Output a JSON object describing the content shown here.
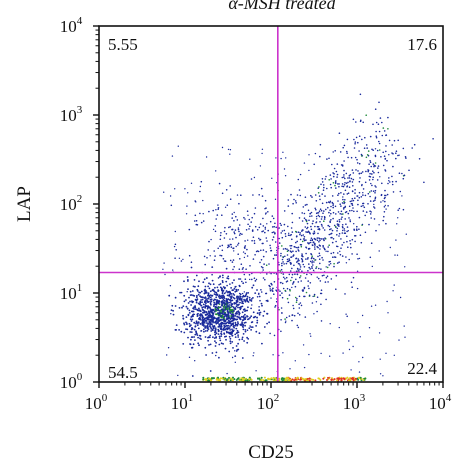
{
  "chart_data": {
    "type": "scatter",
    "title": "α-MSH treated",
    "xlabel": "CD25",
    "ylabel": "LAP",
    "x_scale": "log",
    "y_scale": "log",
    "xlim": [
      1,
      10000
    ],
    "ylim": [
      1,
      10000
    ],
    "x_ticks": [
      {
        "base": "10",
        "exp": "0",
        "value": 1
      },
      {
        "base": "10",
        "exp": "1",
        "value": 10
      },
      {
        "base": "10",
        "exp": "2",
        "value": 100
      },
      {
        "base": "10",
        "exp": "3",
        "value": 1000
      },
      {
        "base": "10",
        "exp": "4",
        "value": 10000
      }
    ],
    "y_ticks": [
      {
        "base": "10",
        "exp": "0",
        "value": 1
      },
      {
        "base": "10",
        "exp": "1",
        "value": 10
      },
      {
        "base": "10",
        "exp": "2",
        "value": 100
      },
      {
        "base": "10",
        "exp": "3",
        "value": 1000
      },
      {
        "base": "10",
        "exp": "4",
        "value": 10000
      }
    ],
    "gates": {
      "x": 120,
      "y": 17
    },
    "quadrants": {
      "upper_left": "5.55",
      "upper_right": "17.6",
      "lower_left": "54.5",
      "lower_right": "22.4"
    },
    "grid": false,
    "colors": {
      "gate": "#cc33cc",
      "dots_low": "#1a2a9c",
      "dots_mid": "#1f8a3a",
      "dots_high": "#e0d020",
      "dots_peak": "#e03020"
    }
  }
}
